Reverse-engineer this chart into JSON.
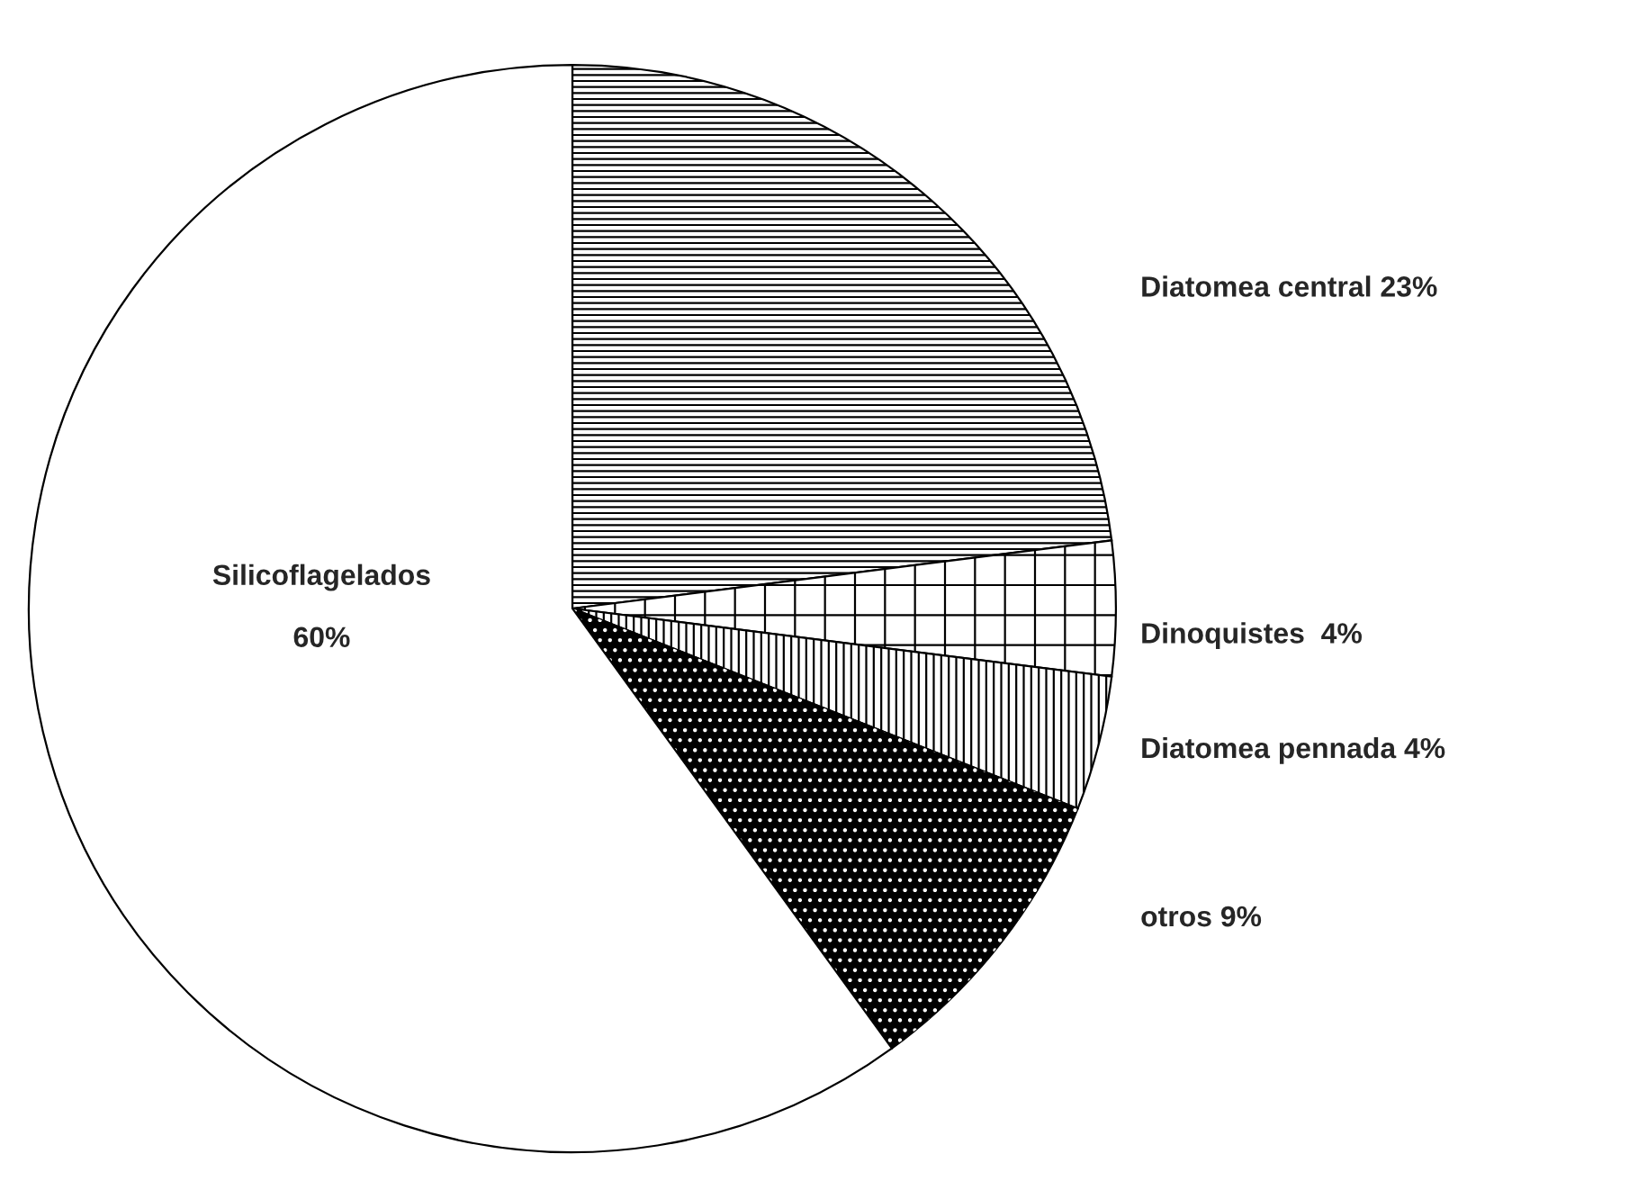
{
  "chart_data": {
    "type": "pie",
    "categories": [
      "Diatomea central",
      "Dinoquistes ",
      "Diatomea pennada",
      "otros",
      "Silicoflagelados"
    ],
    "values": [
      23,
      4,
      4,
      9,
      60
    ],
    "value_labels": [
      "23%",
      "4%",
      "4%",
      "9%",
      "60%"
    ],
    "colors": [
      "#ffffff",
      "#ffffff",
      "#ffffff",
      "#000000",
      "#ffffff"
    ],
    "legend": false
  }
}
